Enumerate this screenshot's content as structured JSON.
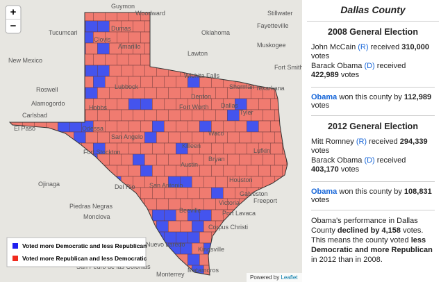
{
  "map": {
    "zoom_in": "+",
    "zoom_out": "−",
    "places": [
      "Guymon",
      "Woodward",
      "Stillwater",
      "Dumas",
      "Oklahoma",
      "Fayetteville",
      "Tucumcari",
      "Clovis",
      "Amarillo",
      "Muskogee",
      "New Mexico",
      "Lawton",
      "Fort Smith",
      "Wichita Falls",
      "Roswell",
      "Lubbock",
      "Sherman",
      "Texarkana",
      "Alamogordo",
      "Denton",
      "Carlsbad",
      "Hobbs",
      "Fort Worth",
      "Dallas",
      "Tyler",
      "Odessa",
      "El Paso",
      "San Angelo",
      "Waco",
      "Fort Stockton",
      "Killeen",
      "Bryan",
      "Lufkin",
      "Ojinaga",
      "Austin",
      "Del Rio",
      "San Antonio",
      "Houston",
      "Galveston",
      "Piedras Negras",
      "Victoria",
      "Freeport",
      "Port Lavaca",
      "Beeville",
      "Corpus Christi",
      "Nuevo Laredo",
      "Kingsville",
      "Monclova",
      "San Pedro de las Colonias",
      "Monterrey",
      "Matamoros"
    ],
    "legend": [
      "Voted more Democratic and less Republican",
      "Voted more Republican and less Democratic"
    ],
    "attribution": {
      "prefix": "Powered by",
      "link": "Leaflet"
    }
  },
  "sidebar": {
    "title": "Dallas County",
    "elections": [
      {
        "heading": "2008 General Election",
        "results": [
          {
            "candidate": "John McCain",
            "party": "(R)",
            "verb": "received",
            "votes": "310,000",
            "unit": "votes"
          },
          {
            "candidate": "Barack Obama",
            "party": "(D)",
            "verb": "received",
            "votes": "422,989",
            "unit": "votes"
          }
        ],
        "summary": {
          "winner": "Obama",
          "text": "won this county by",
          "margin": "112,989",
          "unit": "votes"
        }
      },
      {
        "heading": "2012 General Election",
        "results": [
          {
            "candidate": "Mitt Romney",
            "party": "(R)",
            "verb": "received",
            "votes": "294,339",
            "unit": "votes"
          },
          {
            "candidate": "Barack Obama",
            "party": "(D)",
            "verb": "received",
            "votes": "403,170",
            "unit": "votes"
          }
        ],
        "summary": {
          "winner": "Obama",
          "text": "won this county by",
          "margin": "108,831",
          "unit": "votes"
        }
      }
    ],
    "analysis": [
      "Obama's performance in Dallas County",
      "declined by 4,158",
      "votes. This means the county voted",
      "less Democratic and more Republican",
      "in 2012 than in 2008."
    ]
  }
}
